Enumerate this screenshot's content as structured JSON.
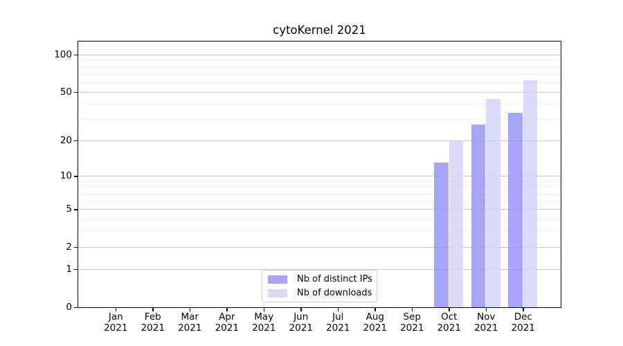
{
  "title": "cytoKernel 2021",
  "legend": {
    "position": "inside-lower-center",
    "items": [
      {
        "label": "Nb of distinct IPs",
        "color": "#a7a5f8",
        "fill": "rgba(152,149,247,0.85)"
      },
      {
        "label": "Nb of downloads",
        "color": "#dad9fa",
        "fill": "rgba(213,211,250,0.85)"
      }
    ]
  },
  "chart_data": {
    "type": "bar",
    "title": "cytoKernel 2021",
    "categories": [
      "Jan",
      "Feb",
      "Mar",
      "Apr",
      "May",
      "Jun",
      "Jul",
      "Aug",
      "Sep",
      "Oct",
      "Nov",
      "Dec"
    ],
    "category_year": "2021",
    "series": [
      {
        "name": "Nb of distinct IPs",
        "color": "#a7a5f8",
        "fill": "rgba(152,149,247,0.85)",
        "values": [
          0,
          0,
          0,
          0,
          0,
          0,
          0,
          0,
          0,
          13,
          27,
          34
        ]
      },
      {
        "name": "Nb of downloads",
        "color": "#dad9fa",
        "fill": "rgba(213,211,250,0.85)",
        "values": [
          0,
          0,
          0,
          0,
          0,
          0,
          0,
          0,
          0,
          20,
          44,
          62
        ]
      }
    ],
    "xlabel": "",
    "ylabel": "",
    "yscale": "log1p",
    "ylim": [
      0,
      128
    ],
    "yticks": [
      0,
      1,
      2,
      5,
      10,
      20,
      50,
      100
    ],
    "yminorticks": [
      3,
      4,
      6,
      7,
      8,
      9,
      30,
      40,
      60,
      70,
      80,
      90,
      110,
      120
    ],
    "grid": "horizontal-major-and-minor",
    "legend_position": "lower center (inside axes)"
  },
  "colors": {
    "grid_major": "#c6c6c6",
    "grid_minor": "#ececec",
    "spine": "#000000",
    "text": "#000000",
    "background": "#ffffff"
  }
}
